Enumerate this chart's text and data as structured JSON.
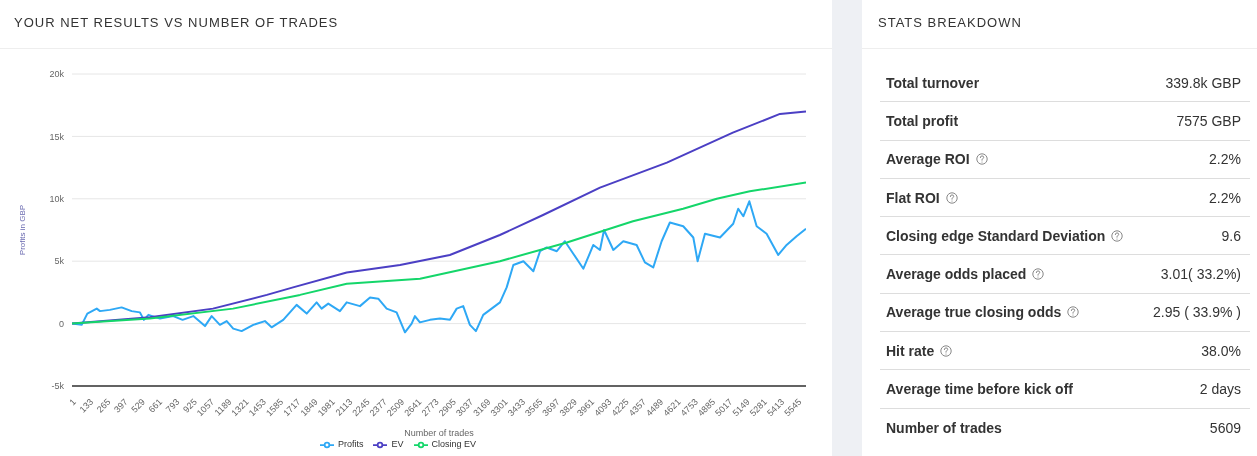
{
  "chart_data": [
    {
      "type": "line",
      "title": "YOUR NET RESULTS VS NUMBER OF TRADES",
      "xlabel": "Number of trades",
      "ylabel": "Profits in GBP",
      "xlim": [
        1,
        5609
      ],
      "xticks": [
        1,
        133,
        265,
        397,
        529,
        661,
        793,
        925,
        1057,
        1189,
        1321,
        1453,
        1585,
        1717,
        1849,
        1981,
        2113,
        2245,
        2377,
        2509,
        2641,
        2773,
        2905,
        3037,
        3169,
        3301,
        3433,
        3565,
        3697,
        3829,
        3961,
        4093,
        4225,
        4357,
        4489,
        4621,
        4753,
        4885,
        5017,
        5149,
        5281,
        5413,
        5545
      ],
      "ylim": [
        -5000,
        20000
      ],
      "yticks": [
        {
          "value": -5000,
          "label": "-5k"
        },
        0,
        {
          "value": 5000,
          "label": "5k"
        },
        {
          "value": 10000,
          "label": "10k"
        },
        {
          "value": 15000,
          "label": "15k"
        },
        {
          "value": 20000,
          "label": "20k"
        }
      ],
      "grid": "y",
      "legend": "bottom",
      "series": [
        {
          "name": "Profits",
          "color": "#2ea8f5",
          "x": [
            1,
            75,
            118,
            190,
            215,
            290,
            380,
            457,
            520,
            550,
            585,
            673,
            775,
            846,
            928,
            1017,
            1068,
            1131,
            1183,
            1233,
            1297,
            1386,
            1475,
            1526,
            1615,
            1717,
            1794,
            1870,
            1908,
            1959,
            2048,
            2100,
            2201,
            2278,
            2341,
            2405,
            2481,
            2545,
            2596,
            2621,
            2659,
            2736,
            2812,
            2889,
            2940,
            2990,
            3041,
            3087,
            3143,
            3207,
            3271,
            3322,
            3373,
            3450,
            3526,
            3577,
            3628,
            3705,
            3767,
            3831,
            3908,
            3984,
            4035,
            4066,
            4137,
            4213,
            4315,
            4378,
            4442,
            4506,
            4569,
            4671,
            4748,
            4781,
            4837,
            4952,
            5053,
            5091,
            5130,
            5176,
            5232,
            5308,
            5397,
            5461,
            5537,
            5609
          ],
          "values": [
            0,
            -100,
            800,
            1200,
            1000,
            1100,
            1300,
            1000,
            900,
            300,
            700,
            400,
            600,
            300,
            600,
            -200,
            600,
            -100,
            200,
            -400,
            -600,
            -100,
            200,
            -300,
            300,
            1500,
            800,
            1700,
            1200,
            1600,
            1000,
            1700,
            1400,
            2100,
            2000,
            1200,
            900,
            -700,
            0,
            600,
            100,
            300,
            400,
            300,
            1200,
            1400,
            -100,
            -600,
            700,
            1200,
            1700,
            2900,
            4700,
            5000,
            4200,
            5800,
            6100,
            5800,
            6600,
            5600,
            4400,
            6300,
            5900,
            7500,
            5900,
            6600,
            6300,
            4900,
            4500,
            6600,
            8100,
            7800,
            6900,
            5000,
            7200,
            6900,
            8000,
            9200,
            8600,
            9800,
            7800,
            7200,
            5500,
            6300,
            7000,
            7600
          ]
        },
        {
          "name": "EV",
          "color": "#4b3fc4",
          "x": [
            1,
            596,
            1078,
            1490,
            1690,
            2100,
            2507,
            2888,
            3270,
            3600,
            4035,
            4546,
            5050,
            5410,
            5609
          ],
          "values": [
            0,
            500,
            1200,
            2300,
            2900,
            4100,
            4700,
            5500,
            7100,
            8700,
            10900,
            12900,
            15300,
            16800,
            17000
          ]
        },
        {
          "name": "Closing EV",
          "color": "#14d66a",
          "x": [
            1,
            596,
            1231,
            1743,
            2100,
            2660,
            3270,
            3782,
            4287,
            4670,
            4927,
            5180,
            5609
          ],
          "values": [
            0,
            400,
            1200,
            2300,
            3200,
            3600,
            5000,
            6500,
            8200,
            9200,
            10000,
            10600,
            11300
          ]
        }
      ]
    },
    {
      "type": "other",
      "title": "STATS BREAKDOWN",
      "annotations": [
        "Total turnover",
        "339.8k GBP",
        "Total profit",
        "7575 GBP",
        "Average ROI",
        "2.2%",
        "Flat ROI",
        "2.2%",
        "Closing edge Standard Deviation",
        "9.6",
        "Average odds placed",
        "3.01( 33.2%)",
        "Average true closing odds",
        "2.95 ( 33.9% )",
        "Hit rate",
        "38.0%",
        "Average time before kick off",
        "2 days",
        "Number of trades",
        "5609"
      ]
    }
  ]
}
